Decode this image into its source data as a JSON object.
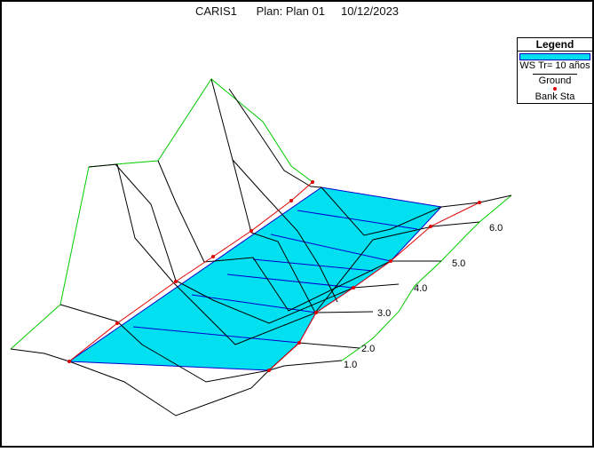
{
  "title": "CARIS1      Plan: Plan 01     10/12/2023",
  "legend": {
    "heading": "Legend",
    "items": [
      {
        "label": "WS Tr= 10 años",
        "color": "#00e0f0",
        "kind": "water-surface"
      },
      {
        "label": "Ground",
        "color": "#000000",
        "kind": "line"
      },
      {
        "label": "Bank Sta",
        "color": "#e00000",
        "kind": "point"
      }
    ]
  },
  "stations": [
    "1.0",
    "2.0",
    "3.0",
    "4.0",
    "5.0",
    "6.0"
  ],
  "colors": {
    "water_fill": "#00e0f0",
    "water_lines": "#0000d0",
    "ground": "#000000",
    "bank": "#e00000",
    "envelope": "#00cc00"
  }
}
